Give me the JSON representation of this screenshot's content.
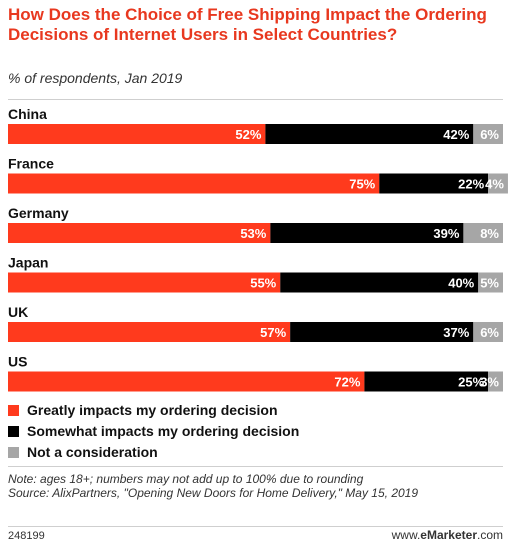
{
  "title": "How Does the Choice of Free Shipping Impact the Ordering Decisions of Internet Users in Select Countries?",
  "subtitle": "% of respondents, Jan 2019",
  "chart_data": {
    "type": "bar",
    "stacked": true,
    "orientation": "horizontal",
    "categories": [
      "China",
      "France",
      "Germany",
      "Japan",
      "UK",
      "US"
    ],
    "series": [
      {
        "name": "Greatly impacts my ordering decision",
        "values": [
          52,
          75,
          53,
          55,
          57,
          72
        ],
        "color": "#ff3a1d"
      },
      {
        "name": "Somewhat impacts my ordering decision",
        "values": [
          42,
          22,
          39,
          40,
          37,
          25
        ],
        "color": "#000000"
      },
      {
        "name": "Not a consideration",
        "values": [
          6,
          4,
          8,
          5,
          6,
          3
        ],
        "color": "#a6a6a6"
      }
    ],
    "value_suffix": "%",
    "xlim": [
      0,
      100
    ],
    "legend_position": "bottom-left"
  },
  "note": "Note: ages 18+; numbers may not add up to 100% due to rounding",
  "source": "Source: AlixPartners, \"Opening New Doors for Home Delivery,\" May 15, 2019",
  "footer_id": "248199",
  "brand": {
    "prefix": "www.",
    "name": "eMarketer",
    "suffix": ".com"
  }
}
